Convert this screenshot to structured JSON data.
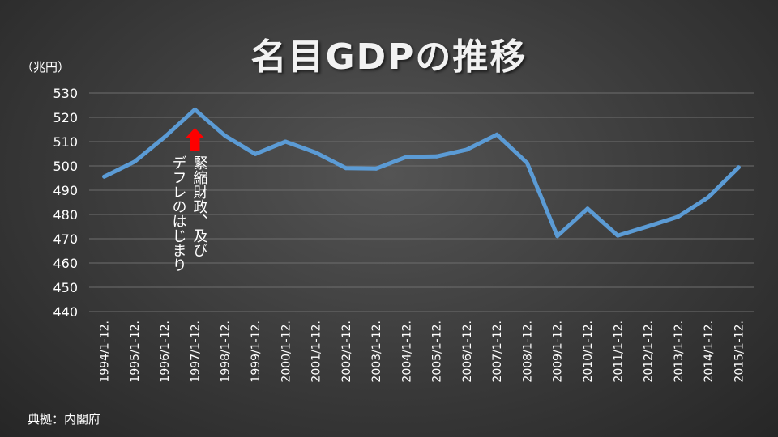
{
  "title": "名目GDPの推移",
  "unit_label": "（兆円）",
  "source": "典拠：内閣府",
  "annotation": {
    "line1": "緊縮財政、及び",
    "line2": "デフレのはじまり",
    "arrow_color": "#ff0000",
    "x_category": "1997/1-12."
  },
  "chart_data": {
    "type": "line",
    "title": "名目GDPの推移",
    "ylabel": "（兆円）",
    "xlabel": "",
    "ylim": [
      440,
      530
    ],
    "yticks": [
      530,
      520,
      510,
      500,
      490,
      480,
      470,
      460,
      450,
      440
    ],
    "grid": true,
    "legend": "none",
    "categories": [
      "1994/1-12.",
      "1995/1-12.",
      "1996/1-12.",
      "1997/1-12.",
      "1998/1-12.",
      "1999/1-12.",
      "2000/1-12.",
      "2001/1-12.",
      "2002/1-12.",
      "2003/1-12.",
      "2004/1-12.",
      "2005/1-12.",
      "2006/1-12.",
      "2007/1-12.",
      "2008/1-12.",
      "2009/1-12.",
      "2010/1-12.",
      "2011/1-12.",
      "2012/1-12.",
      "2013/1-12.",
      "2014/1-12.",
      "2015/1-12."
    ],
    "series": [
      {
        "color": "#5b9bd5",
        "values": [
          495.6,
          501.7,
          511.9,
          523.2,
          512.4,
          504.9,
          510.0,
          505.5,
          499.1,
          498.9,
          503.7,
          503.9,
          506.7,
          512.9,
          501.2,
          471.1,
          482.4,
          471.3,
          475.1,
          479.1,
          487.1,
          499.4
        ]
      }
    ]
  }
}
